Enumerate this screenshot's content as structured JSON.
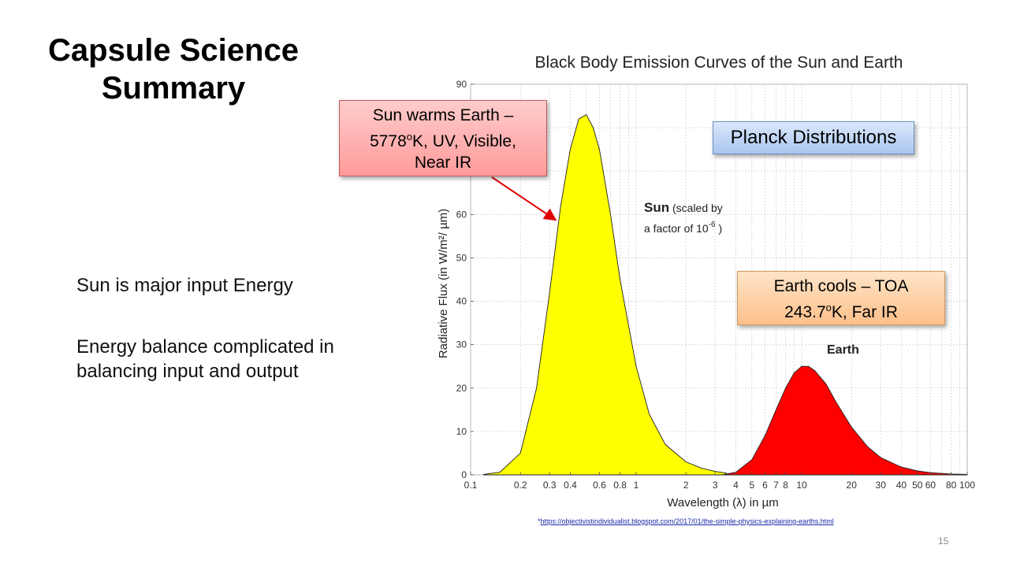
{
  "slide": {
    "title": "Capsule Science Summary",
    "bullets": [
      "Sun is major input Energy",
      "Energy balance complicated in balancing input and output"
    ],
    "page_number": "15",
    "source_prefix": "*",
    "source_url": "https://objectivistindividualist.blogspot.com/2017/01/the-simple-physics-explaining-earths.html"
  },
  "callouts": {
    "sun_line1": "Sun warms Earth –",
    "sun_line2_num": "5778",
    "sun_line2_sup": "o",
    "sun_line2_rest": "K, UV, Visible,",
    "sun_line3": "Near IR",
    "earth_line1": "Earth cools – TOA",
    "earth_line2_num": "243.7",
    "earth_line2_sup": "o",
    "earth_line2_rest": "K, Far IR",
    "planck": "Planck Distributions"
  },
  "colors": {
    "sun_fill": "#ffff00",
    "earth_fill": "#ff0000",
    "arrow": "#e00000"
  },
  "chart_data": {
    "type": "area",
    "title": "Black Body Emission Curves of the Sun and Earth",
    "xlabel": "Wavelength (λ) in µm",
    "ylabel": "Radiative Flux (in W/m²/ µm)",
    "x_scale": "log",
    "xlim": [
      0.1,
      100
    ],
    "ylim": [
      0,
      90
    ],
    "x_ticks": [
      "0.1",
      "0.2",
      "0.3",
      "0.4",
      "0.6",
      "0.8",
      "1",
      "2",
      "3",
      "4",
      "5",
      "6",
      "7",
      "8",
      "10",
      "20",
      "30",
      "40",
      "50",
      "60",
      "80",
      "100"
    ],
    "y_ticks": [
      "0",
      "10",
      "20",
      "30",
      "40",
      "50",
      "60",
      "90"
    ],
    "grid": true,
    "series": [
      {
        "name": "Sun",
        "note_bold": "Sun",
        "note_rest": " (scaled by",
        "note_line2": "a factor of 10",
        "note_sup": "-6",
        "note_end": " )",
        "peak_x": 0.5,
        "peak_y": 83,
        "x": [
          0.12,
          0.15,
          0.2,
          0.25,
          0.3,
          0.35,
          0.4,
          0.45,
          0.5,
          0.55,
          0.6,
          0.7,
          0.8,
          1.0,
          1.2,
          1.5,
          2.0,
          2.5,
          3.0,
          3.5
        ],
        "values": [
          0.1,
          0.6,
          5,
          20,
          42,
          62,
          75,
          82,
          83,
          80,
          75,
          60,
          45,
          25,
          14,
          7,
          3,
          1.5,
          0.8,
          0.4
        ]
      },
      {
        "name": "Earth",
        "peak_x": 10.4,
        "peak_y": 25,
        "x": [
          3.3,
          4,
          5,
          6,
          7,
          8,
          9,
          10,
          11,
          12,
          14,
          16,
          20,
          25,
          30,
          40,
          50,
          60,
          80,
          100
        ],
        "values": [
          0,
          0.6,
          3.5,
          9,
          15,
          20,
          23.5,
          25,
          25,
          24,
          21,
          17,
          11,
          6.5,
          4,
          1.8,
          0.9,
          0.5,
          0.2,
          0.1
        ]
      }
    ]
  }
}
